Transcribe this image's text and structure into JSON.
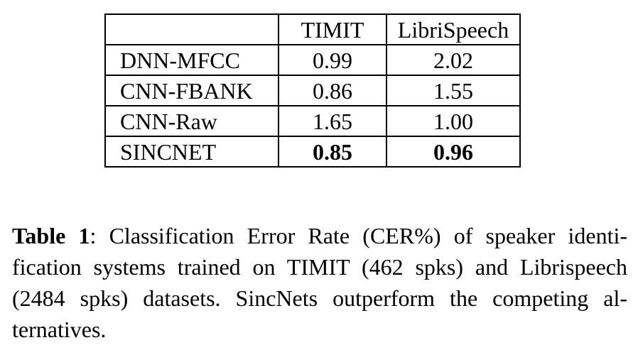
{
  "table": {
    "headers": [
      "",
      "TIMIT",
      "LibriSpeech"
    ],
    "rows": [
      {
        "method": "DNN-MFCC",
        "timit": "0.99",
        "libri": "2.02"
      },
      {
        "method": "CNN-FBANK",
        "timit": "0.86",
        "libri": "1.55"
      },
      {
        "method": "CNN-Raw",
        "timit": "1.65",
        "libri": "1.00"
      },
      {
        "method": "SINCNET",
        "timit": "0.85",
        "libri": "0.96"
      }
    ]
  },
  "caption": {
    "label": "Table 1",
    "text": ": Classification Error Rate (CER%) of speaker identi-fication systems trained on TIMIT (462 spks) and Librispeech (2484 spks) datasets. SincNets outperform the competing al-ternatives."
  }
}
